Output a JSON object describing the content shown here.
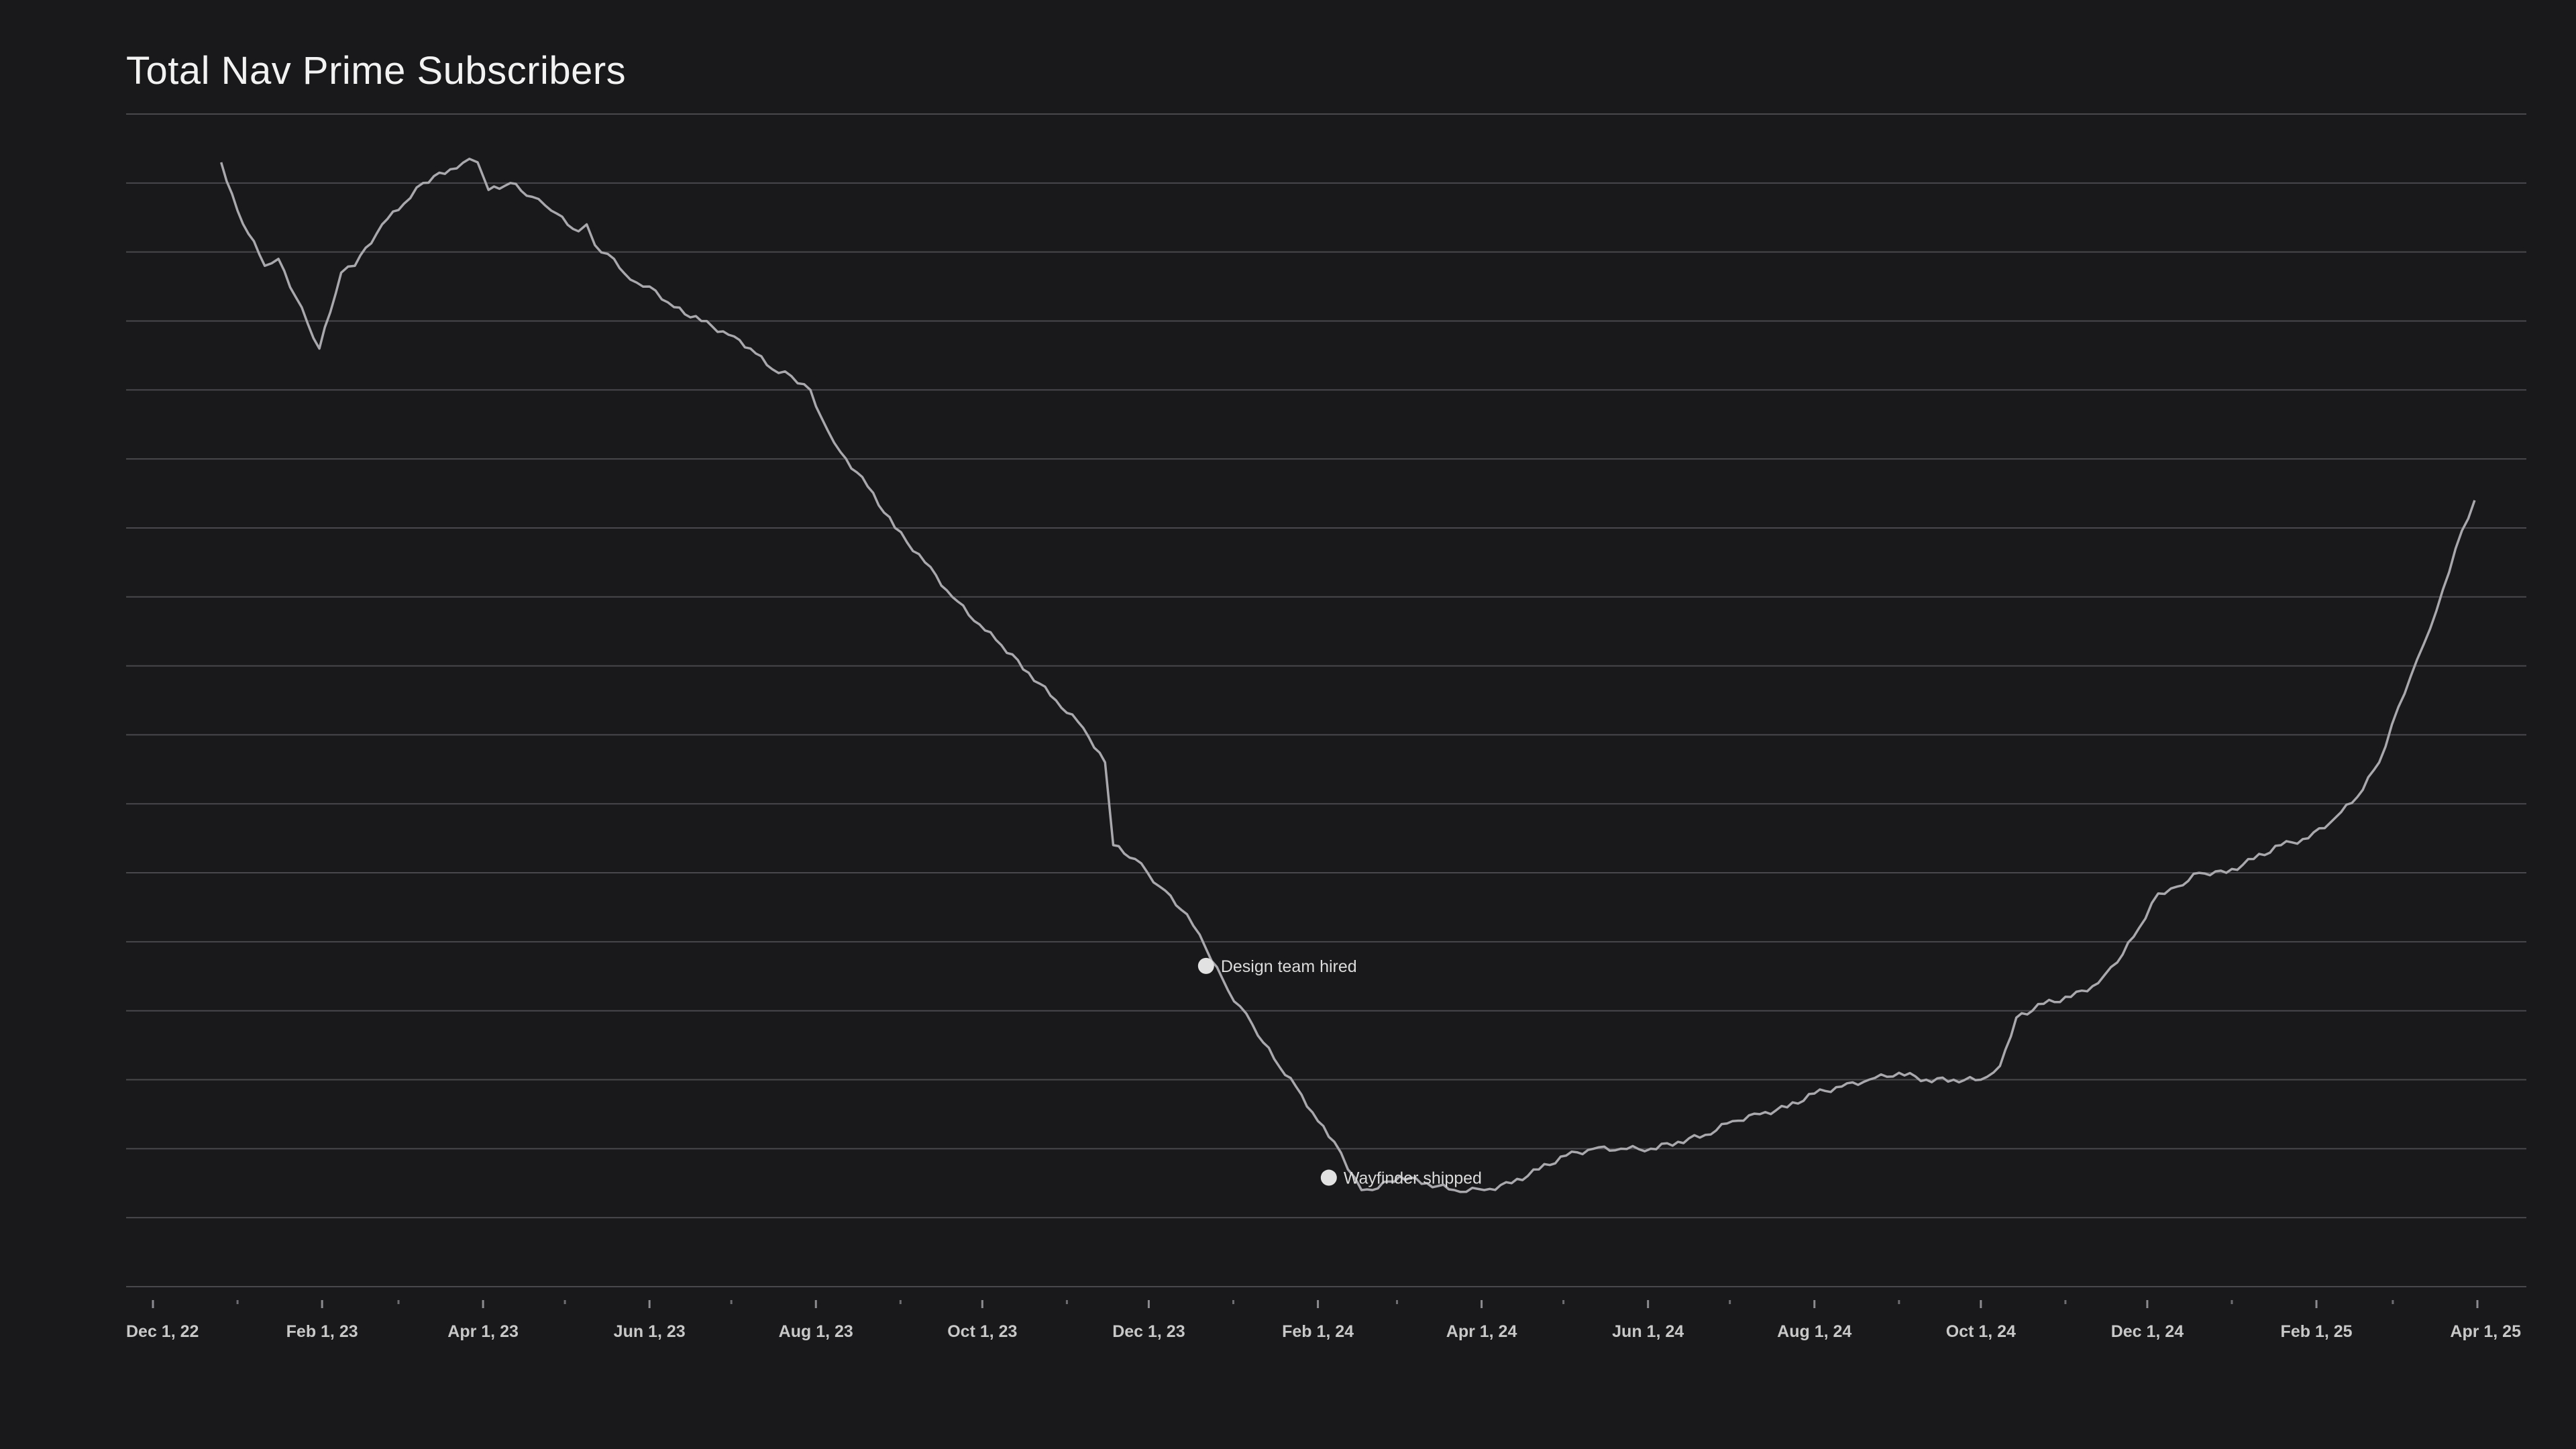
{
  "chart_data": {
    "type": "line",
    "title": "Total Nav Prime Subscribers",
    "xlabel": "",
    "ylabel": "",
    "x_axis": {
      "type": "date",
      "range": [
        "2022-12-01",
        "2025-04-01"
      ],
      "tick_labels": [
        "Dec 1, 22",
        "Feb 1, 23",
        "Apr 1, 23",
        "Jun 1, 23",
        "Aug 1, 23",
        "Oct 1, 23",
        "Dec 1, 23",
        "Feb 1, 24",
        "Apr 1, 24",
        "Jun 1, 24",
        "Aug 1, 24",
        "Oct 1, 24",
        "Dec 1, 24",
        "Feb 1, 25",
        "Apr 1, 25"
      ],
      "tick_dates": [
        "2022-12-01",
        "2023-02-01",
        "2023-04-01",
        "2023-06-01",
        "2023-08-01",
        "2023-10-01",
        "2023-12-01",
        "2024-02-01",
        "2024-04-01",
        "2024-06-01",
        "2024-08-01",
        "2024-10-01",
        "2024-12-01",
        "2025-02-01",
        "2025-04-01"
      ],
      "minor_tick_dates": [
        "2023-01-01",
        "2023-03-01",
        "2023-05-01",
        "2023-07-01",
        "2023-09-01",
        "2023-11-01",
        "2024-01-01",
        "2024-03-01",
        "2024-05-01",
        "2024-07-01",
        "2024-09-01",
        "2024-11-01",
        "2025-01-01",
        "2025-03-01"
      ]
    },
    "y_axis": {
      "ylim": [
        0,
        17
      ],
      "gridlines": 18,
      "tick_labels_shown": false
    },
    "grid": true,
    "legend": "none",
    "series": [
      {
        "color": "#a9a9ad",
        "points": [
          [
            "2022-12-26",
            16.3
          ],
          [
            "2023-01-01",
            15.6
          ],
          [
            "2023-01-11",
            14.8
          ],
          [
            "2023-01-16",
            14.9
          ],
          [
            "2023-01-31",
            13.6
          ],
          [
            "2023-02-08",
            14.7
          ],
          [
            "2023-02-13",
            14.8
          ],
          [
            "2023-02-23",
            15.4
          ],
          [
            "2023-03-03",
            15.7
          ],
          [
            "2023-03-10",
            16.0
          ],
          [
            "2023-03-20",
            16.2
          ],
          [
            "2023-03-27",
            16.35
          ],
          [
            "2023-03-30",
            16.3
          ],
          [
            "2023-04-03",
            15.9
          ],
          [
            "2023-04-11",
            16.0
          ],
          [
            "2023-04-19",
            15.8
          ],
          [
            "2023-04-26",
            15.6
          ],
          [
            "2023-05-06",
            15.3
          ],
          [
            "2023-05-09",
            15.4
          ],
          [
            "2023-05-12",
            15.1
          ],
          [
            "2023-05-19",
            14.9
          ],
          [
            "2023-05-25",
            14.6
          ],
          [
            "2023-06-01",
            14.5
          ],
          [
            "2023-06-10",
            14.2
          ],
          [
            "2023-06-20",
            14.0
          ],
          [
            "2023-06-30",
            13.8
          ],
          [
            "2023-07-08",
            13.6
          ],
          [
            "2023-07-16",
            13.3
          ],
          [
            "2023-07-23",
            13.2
          ],
          [
            "2023-07-30",
            13.0
          ],
          [
            "2023-08-03",
            12.6
          ],
          [
            "2023-08-10",
            12.1
          ],
          [
            "2023-08-20",
            11.6
          ],
          [
            "2023-08-30",
            11.0
          ],
          [
            "2023-09-10",
            10.5
          ],
          [
            "2023-09-20",
            10.0
          ],
          [
            "2023-09-30",
            9.6
          ],
          [
            "2023-10-08",
            9.3
          ],
          [
            "2023-10-18",
            8.9
          ],
          [
            "2023-10-28",
            8.5
          ],
          [
            "2023-11-07",
            8.1
          ],
          [
            "2023-11-15",
            7.6
          ],
          [
            "2023-11-18",
            6.4
          ],
          [
            "2023-11-26",
            6.2
          ],
          [
            "2023-12-05",
            5.8
          ],
          [
            "2023-12-15",
            5.4
          ],
          [
            "2023-12-22",
            4.9
          ],
          [
            "2023-12-30",
            4.3
          ],
          [
            "2024-01-08",
            3.8
          ],
          [
            "2024-01-16",
            3.3
          ],
          [
            "2024-01-24",
            2.9
          ],
          [
            "2024-02-01",
            2.4
          ],
          [
            "2024-02-07",
            2.1
          ],
          [
            "2024-02-12",
            1.7
          ],
          [
            "2024-02-17",
            1.4
          ],
          [
            "2024-02-21",
            1.4
          ],
          [
            "2024-03-02",
            1.6
          ],
          [
            "2024-03-12",
            1.5
          ],
          [
            "2024-03-22",
            1.4
          ],
          [
            "2024-04-02",
            1.4
          ],
          [
            "2024-04-12",
            1.5
          ],
          [
            "2024-04-22",
            1.7
          ],
          [
            "2024-05-02",
            1.9
          ],
          [
            "2024-05-12",
            2.0
          ],
          [
            "2024-05-22",
            2.0
          ],
          [
            "2024-06-02",
            2.0
          ],
          [
            "2024-06-12",
            2.1
          ],
          [
            "2024-06-22",
            2.2
          ],
          [
            "2024-07-02",
            2.4
          ],
          [
            "2024-07-12",
            2.5
          ],
          [
            "2024-07-22",
            2.6
          ],
          [
            "2024-08-01",
            2.8
          ],
          [
            "2024-08-11",
            2.9
          ],
          [
            "2024-08-21",
            3.0
          ],
          [
            "2024-09-01",
            3.1
          ],
          [
            "2024-09-11",
            3.0
          ],
          [
            "2024-09-21",
            3.0
          ],
          [
            "2024-10-01",
            3.0
          ],
          [
            "2024-10-08",
            3.2
          ],
          [
            "2024-10-14",
            3.9
          ],
          [
            "2024-10-24",
            4.1
          ],
          [
            "2024-11-03",
            4.2
          ],
          [
            "2024-11-13",
            4.4
          ],
          [
            "2024-11-20",
            4.7
          ],
          [
            "2024-11-28",
            5.2
          ],
          [
            "2024-12-05",
            5.7
          ],
          [
            "2024-12-12",
            5.8
          ],
          [
            "2024-12-20",
            6.0
          ],
          [
            "2024-12-30",
            6.0
          ],
          [
            "2025-01-09",
            6.2
          ],
          [
            "2025-01-19",
            6.4
          ],
          [
            "2025-01-29",
            6.5
          ],
          [
            "2025-02-08",
            6.8
          ],
          [
            "2025-02-16",
            7.1
          ],
          [
            "2025-02-24",
            7.6
          ],
          [
            "2025-03-03",
            8.4
          ],
          [
            "2025-03-10",
            9.1
          ],
          [
            "2025-03-17",
            9.8
          ],
          [
            "2025-03-24",
            10.7
          ],
          [
            "2025-03-31",
            11.4
          ]
        ]
      }
    ],
    "annotations": [
      {
        "label": "Design team hired",
        "date": "2023-12-22",
        "y": 4.65
      },
      {
        "label": "Wayfinder shipped",
        "date": "2024-02-05",
        "y": 1.58
      }
    ]
  }
}
